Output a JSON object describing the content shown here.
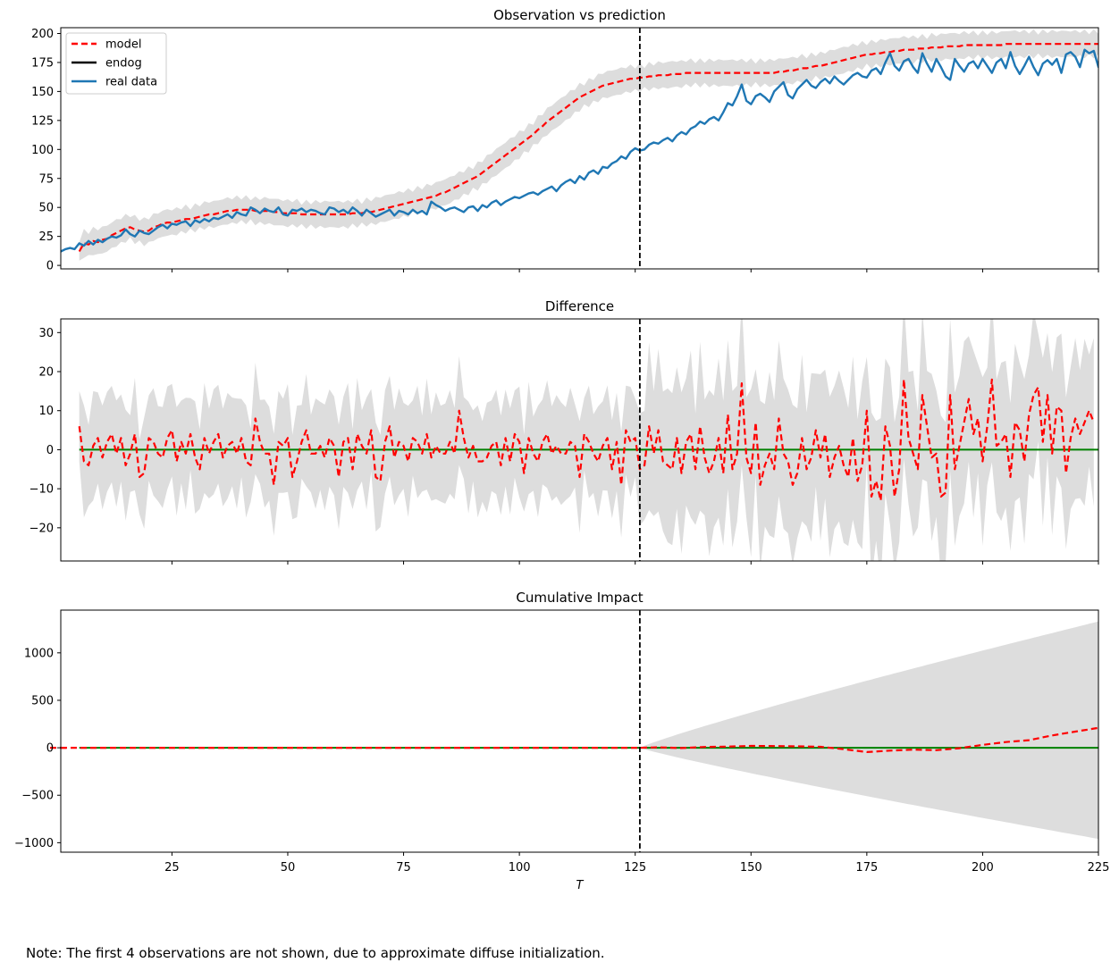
{
  "note": "Note: The first 4 observations are not shown, due to approximate diffuse initialization.",
  "colors": {
    "model": "#ff0000",
    "endog": "#000000",
    "real_data": "#1f77b4",
    "zero_line": "#008000",
    "band": "#dddddd",
    "intervention_line": "#000000"
  },
  "chart_data": [
    {
      "type": "line",
      "title": "Observation vs prediction",
      "xlabel": "",
      "ylabel": "",
      "xlim": [
        1,
        225
      ],
      "ylim": [
        -3,
        205
      ],
      "yticks": [
        0,
        25,
        50,
        75,
        100,
        125,
        150,
        175,
        200
      ],
      "xticks": [
        25,
        50,
        75,
        100,
        125,
        150,
        175,
        200,
        225
      ],
      "show_xtick_labels": false,
      "grid": false,
      "legend": {
        "position": "top-left",
        "entries": [
          "model",
          "endog",
          "real data"
        ]
      },
      "intervention_x": 126,
      "x_start": 5,
      "real_data_x_start": 1,
      "series": [
        {
          "name": "model",
          "style": "dashed",
          "color": "#ff0000",
          "values": [
            12,
            19,
            18,
            21,
            20,
            22,
            23,
            26,
            28,
            30,
            32,
            33,
            31,
            30,
            29,
            30,
            33,
            34,
            36,
            37,
            37,
            38,
            39,
            40,
            40,
            41,
            42,
            43,
            44,
            44,
            45,
            46,
            47,
            47,
            48,
            48,
            48,
            48,
            47,
            47,
            47,
            47,
            46,
            46,
            45,
            45,
            45,
            45,
            44,
            44,
            44,
            44,
            44,
            44,
            44,
            44,
            44,
            44,
            44,
            45,
            45,
            45,
            46,
            46,
            47,
            48,
            49,
            50,
            51,
            52,
            53,
            54,
            55,
            56,
            57,
            58,
            59,
            60,
            62,
            63,
            65,
            67,
            69,
            71,
            73,
            75,
            77,
            80,
            83,
            86,
            89,
            92,
            95,
            98,
            101,
            104,
            107,
            110,
            113,
            117,
            120,
            124,
            127,
            130,
            133,
            136,
            139,
            142,
            145,
            147,
            149,
            151,
            153,
            155,
            156,
            157,
            158,
            159,
            160,
            161,
            161,
            162,
            162,
            163,
            163,
            164,
            164,
            164,
            165,
            165,
            165,
            166,
            166,
            166,
            166,
            166,
            166,
            166,
            166,
            166,
            166,
            166,
            166,
            166,
            166,
            166,
            166,
            166,
            166,
            166,
            166,
            167,
            167,
            168,
            168,
            169,
            170,
            170,
            171,
            172,
            172,
            173,
            174,
            175,
            176,
            177,
            178,
            179,
            180,
            181,
            182,
            182,
            183,
            183,
            184,
            184,
            185,
            185,
            186,
            186,
            186,
            187,
            187,
            187,
            188,
            188,
            188,
            189,
            189,
            189,
            189,
            190,
            190,
            190,
            190,
            190,
            190,
            190,
            190,
            190,
            191,
            191,
            191,
            191,
            191,
            191,
            191,
            191,
            191,
            191,
            191,
            191,
            191,
            191,
            191,
            191,
            191,
            191,
            191,
            191,
            191
          ]
        },
        {
          "name": "endog",
          "style": "solid",
          "color": "#000000",
          "values": []
        },
        {
          "name": "real data",
          "style": "solid",
          "color": "#1f77b4",
          "values": [
            12,
            14,
            15,
            14,
            19,
            17,
            21,
            18,
            22,
            20,
            23,
            25,
            24,
            26,
            31,
            27,
            25,
            30,
            28,
            27,
            30,
            33,
            35,
            32,
            36,
            35,
            37,
            38,
            34,
            39,
            37,
            40,
            38,
            41,
            40,
            42,
            44,
            41,
            46,
            44,
            43,
            50,
            48,
            45,
            49,
            47,
            46,
            50,
            44,
            43,
            48,
            47,
            49,
            46,
            48,
            47,
            45,
            44,
            50,
            49,
            46,
            48,
            45,
            50,
            47,
            43,
            48,
            45,
            42,
            44,
            46,
            48,
            43,
            47,
            46,
            44,
            48,
            45,
            47,
            44,
            55,
            52,
            50,
            47,
            49,
            50,
            48,
            46,
            50,
            51,
            47,
            52,
            50,
            54,
            56,
            52,
            55,
            57,
            59,
            58,
            60,
            62,
            63,
            61,
            64,
            66,
            68,
            64,
            69,
            72,
            74,
            71,
            77,
            74,
            80,
            82,
            79,
            85,
            84,
            88,
            90,
            94,
            92,
            98,
            101,
            99,
            100,
            104,
            106,
            105,
            108,
            110,
            107,
            112,
            115,
            113,
            118,
            120,
            124,
            122,
            126,
            128,
            125,
            132,
            140,
            138,
            146,
            156,
            142,
            139,
            146,
            148,
            145,
            141,
            150,
            154,
            158,
            147,
            144,
            152,
            156,
            160,
            155,
            153,
            158,
            161,
            157,
            163,
            159,
            156,
            160,
            164,
            166,
            163,
            162,
            168,
            170,
            165,
            175,
            183,
            172,
            168,
            176,
            178,
            171,
            166,
            183,
            174,
            167,
            178,
            171,
            163,
            160,
            178,
            172,
            167,
            174,
            176,
            170,
            178,
            172,
            166,
            175,
            178,
            170,
            184,
            172,
            165,
            172,
            180,
            171,
            164,
            174,
            177,
            173,
            178,
            166,
            182,
            184,
            180,
            171,
            186,
            183,
            185,
            171,
            177,
            186,
            183,
            190,
            186
          ]
        }
      ]
    },
    {
      "type": "line",
      "title": "Difference",
      "xlabel": "",
      "ylabel": "",
      "xlim": [
        1,
        225
      ],
      "ylim": [
        -28.5,
        33.5
      ],
      "yticks": [
        -20,
        -10,
        0,
        10,
        20,
        30
      ],
      "xticks": [
        25,
        50,
        75,
        100,
        125,
        150,
        175,
        200,
        225
      ],
      "show_xtick_labels": false,
      "grid": false,
      "intervention_x": 126,
      "x_start": 5,
      "series": [
        {
          "name": "",
          "style": "dashed",
          "color": "#ff0000",
          "values": [
            6,
            -3,
            -4,
            1,
            3,
            -2,
            2,
            4,
            -1,
            3,
            -4,
            -1,
            4,
            -7,
            -6,
            3,
            2,
            -1,
            -2,
            3,
            5,
            -3,
            2,
            -1,
            4,
            -2,
            -5,
            3,
            -1,
            2,
            4,
            -2,
            1,
            2,
            -1,
            3,
            -3,
            -4,
            8,
            2,
            -1,
            -1,
            -9,
            2,
            1,
            3,
            -7,
            -3,
            2,
            5,
            -1,
            -1,
            1,
            -2,
            3,
            1,
            -7,
            2,
            3,
            -5,
            4,
            1,
            -1,
            5,
            -7,
            -8,
            2,
            6,
            -2,
            2,
            1,
            -3,
            3,
            2,
            -1,
            4,
            -2,
            1,
            -1,
            -1,
            2,
            -1,
            10,
            3,
            -2,
            1,
            -3,
            -3,
            -2,
            1,
            2,
            -4,
            3,
            -3,
            4,
            2,
            -6,
            3,
            -1,
            -3,
            2,
            4,
            -1,
            1,
            -1,
            -1,
            2,
            1,
            -7,
            4,
            2,
            -1,
            -3,
            1,
            3,
            -5,
            2,
            -9,
            5,
            2,
            3,
            -5,
            -4,
            6,
            -1,
            5,
            -3,
            -4,
            -5,
            3,
            -6,
            2,
            4,
            -5,
            6,
            -2,
            -6,
            -3,
            3,
            -6,
            9,
            -5,
            -1,
            17,
            -2,
            -6,
            7,
            -9,
            -4,
            -1,
            -5,
            8,
            -1,
            -3,
            -9,
            -6,
            3,
            -5,
            -2,
            5,
            -2,
            4,
            -7,
            -2,
            1,
            -4,
            -7,
            3,
            -8,
            -4,
            10,
            -12,
            -8,
            -13,
            6,
            1,
            -12,
            -5,
            18,
            3,
            -1,
            -5,
            14,
            6,
            -2,
            -1,
            -12,
            -11,
            14,
            -5,
            1,
            7,
            13,
            4,
            8,
            -3,
            6,
            18,
            1,
            2,
            4,
            -7,
            7,
            5,
            -3,
            9,
            14,
            16,
            2,
            14,
            -1,
            11,
            10,
            -6,
            3,
            8,
            4,
            7,
            10,
            7
          ]
        }
      ]
    },
    {
      "type": "line",
      "title": "Cumulative Impact",
      "xlabel": "T",
      "ylabel": "",
      "xlim": [
        1,
        225
      ],
      "ylim": [
        -1100,
        1450
      ],
      "yticks": [
        -1000,
        -500,
        0,
        500,
        1000
      ],
      "xticks": [
        25,
        50,
        75,
        100,
        125,
        150,
        175,
        200,
        225
      ],
      "show_xtick_labels": true,
      "grid": false,
      "intervention_x": 126,
      "series": [
        {
          "name": "",
          "style": "dashed",
          "color": "#ff0000",
          "points": [
            [
              1,
              0
            ],
            [
              126,
              0
            ],
            [
              130,
              5
            ],
            [
              135,
              -3
            ],
            [
              140,
              8
            ],
            [
              145,
              12
            ],
            [
              150,
              20
            ],
            [
              155,
              18
            ],
            [
              160,
              15
            ],
            [
              165,
              10
            ],
            [
              170,
              -15
            ],
            [
              175,
              -45
            ],
            [
              180,
              -30
            ],
            [
              185,
              -20
            ],
            [
              190,
              -25
            ],
            [
              195,
              -5
            ],
            [
              200,
              30
            ],
            [
              205,
              60
            ],
            [
              210,
              80
            ],
            [
              215,
              130
            ],
            [
              220,
              170
            ],
            [
              225,
              210
            ]
          ]
        }
      ]
    }
  ]
}
